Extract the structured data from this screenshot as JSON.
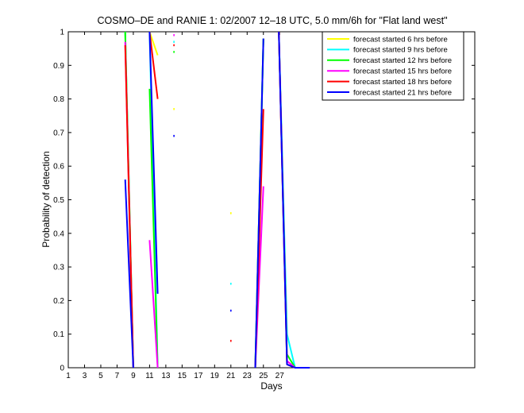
{
  "chart_data": {
    "type": "line",
    "title": "COSMO–DE and RANIE 1: 02/2007 12–18 UTC, 5.0 mm/6h for \"Flat land west\"",
    "xlabel": "Days",
    "ylabel": "Probability of detection",
    "xlim": [
      1,
      51
    ],
    "ylim": [
      0,
      1
    ],
    "xticks": [
      1,
      3,
      5,
      7,
      9,
      11,
      13,
      15,
      17,
      19,
      21,
      23,
      25,
      27
    ],
    "yticks": [
      0,
      0.1,
      0.2,
      0.3,
      0.4,
      0.5,
      0.6,
      0.7,
      0.8,
      0.9,
      1
    ],
    "ytick_labels": [
      "0",
      "0.1",
      "0.2",
      "0.3",
      "0.4",
      "0.5",
      "0.6",
      "0.7",
      "0.8",
      "0.9",
      "1"
    ],
    "grid": false,
    "legend_position": "top-right",
    "series": [
      {
        "name": "forecast started 6 hrs before",
        "color": "#ffff00",
        "points": [
          [
            8,
            1.0
          ],
          [
            9,
            0.0
          ],
          null,
          [
            11,
            1.0
          ],
          [
            12,
            0.93
          ],
          null,
          [
            14,
            0.77
          ],
          null,
          [
            21,
            0.46
          ],
          null,
          [
            24,
            0.0
          ],
          [
            25,
            0.98
          ],
          null,
          [
            26.9,
            1.0
          ],
          [
            27.9,
            0.01
          ],
          [
            28.9,
            0.0
          ]
        ]
      },
      {
        "name": "forecast started 9 hrs before",
        "color": "#00ffff",
        "points": [
          [
            8,
            1.0
          ],
          [
            9,
            0.0
          ],
          null,
          [
            11,
            1.0
          ],
          [
            12,
            0.0
          ],
          null,
          [
            14,
            0.97
          ],
          null,
          [
            21,
            0.25
          ],
          null,
          [
            24,
            0.0
          ],
          [
            25,
            0.98
          ],
          null,
          [
            26.9,
            1.0
          ],
          [
            27.9,
            0.1
          ],
          [
            28.9,
            0.0
          ]
        ]
      },
      {
        "name": "forecast started 12 hrs before",
        "color": "#00ff00",
        "points": [
          [
            8,
            1.0
          ],
          [
            9,
            0.0
          ],
          null,
          [
            11,
            0.83
          ],
          [
            12,
            0.0
          ],
          null,
          [
            14,
            0.94
          ],
          null,
          [
            24,
            0.0
          ],
          [
            25,
            0.98
          ],
          null,
          [
            26.9,
            1.0
          ],
          [
            27.9,
            0.04
          ],
          [
            28.9,
            0.0
          ]
        ]
      },
      {
        "name": "forecast started 15 hrs before",
        "color": "#ff00ff",
        "points": [
          [
            8,
            0.97
          ],
          [
            9,
            0.0
          ],
          null,
          [
            11,
            0.38
          ],
          [
            12,
            0.0
          ],
          null,
          [
            14,
            0.99
          ],
          null,
          [
            24,
            0.0
          ],
          [
            25,
            0.54
          ],
          null,
          [
            26.9,
            1.0
          ],
          [
            27.9,
            0.02
          ],
          [
            28.9,
            0.0
          ]
        ]
      },
      {
        "name": "forecast started 18 hrs before",
        "color": "#ff0000",
        "points": [
          [
            8,
            0.96
          ],
          [
            9,
            0.0
          ],
          null,
          [
            11,
            1.0
          ],
          [
            12,
            0.8
          ],
          null,
          [
            14,
            0.96
          ],
          null,
          [
            21,
            0.08
          ],
          null,
          [
            24,
            0.0
          ],
          [
            25,
            0.77
          ],
          null,
          [
            26.9,
            1.0
          ],
          [
            27.9,
            0.01
          ],
          [
            28.9,
            0.0
          ]
        ]
      },
      {
        "name": "forecast started 21 hrs before",
        "color": "#0000ff",
        "points": [
          [
            8,
            0.56
          ],
          [
            9,
            0.0
          ],
          null,
          [
            11,
            1.0
          ],
          [
            12,
            0.22
          ],
          null,
          [
            14,
            0.69
          ],
          null,
          [
            21,
            0.17
          ],
          null,
          [
            24,
            0.0
          ],
          [
            25,
            0.98
          ],
          null,
          [
            26.9,
            1.0
          ],
          [
            27.9,
            0.01
          ],
          [
            28.9,
            0.0
          ],
          [
            30.7,
            0.0
          ]
        ]
      }
    ]
  }
}
